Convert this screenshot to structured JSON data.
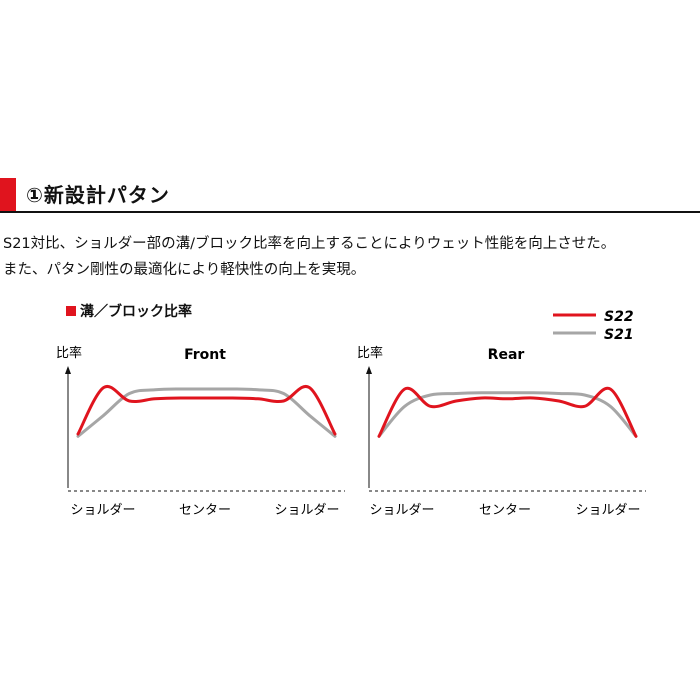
{
  "section": {
    "title": "①新設計パタン",
    "desc_line1": "S21対比、ショルダー部の溝/ブロック比率を向上することによりウェット性能を向上させた。",
    "desc_line2": "また、パタン剛性の最適化により軽快性の向上を実現。"
  },
  "colors": {
    "accent": "#e0141e",
    "s22": "#e0141e",
    "s21": "#a6a6a6"
  },
  "chart_data": [
    {
      "type": "line",
      "title": "Front",
      "section_label": "溝／ブロック比率",
      "ylabel": "比率",
      "categories": [
        "ショルダー",
        "センター",
        "ショルダー"
      ],
      "x": [
        0,
        10,
        20,
        30,
        40,
        50,
        60,
        70,
        80,
        90,
        100
      ],
      "ylim": [
        0,
        100
      ],
      "grid": false,
      "legend": "top-right",
      "series": [
        {
          "name": "S22",
          "values": [
            8,
            70,
            52,
            55,
            56,
            56,
            56,
            55,
            52,
            70,
            8
          ]
        },
        {
          "name": "S21",
          "values": [
            5,
            33,
            62,
            67,
            68,
            68,
            68,
            67,
            62,
            33,
            5
          ]
        }
      ]
    },
    {
      "type": "line",
      "title": "Rear",
      "ylabel": "比率",
      "categories": [
        "ショルダー",
        "センター",
        "ショルダー"
      ],
      "x": [
        0,
        10,
        20,
        30,
        40,
        50,
        60,
        70,
        80,
        90,
        100
      ],
      "ylim": [
        0,
        100
      ],
      "grid": false,
      "legend": "top-right",
      "series": [
        {
          "name": "S22",
          "values": [
            5,
            68,
            45,
            52,
            56,
            55,
            56,
            52,
            45,
            68,
            5
          ]
        },
        {
          "name": "S21",
          "values": [
            5,
            45,
            60,
            62,
            63,
            63,
            63,
            62,
            60,
            45,
            5
          ]
        }
      ]
    }
  ]
}
